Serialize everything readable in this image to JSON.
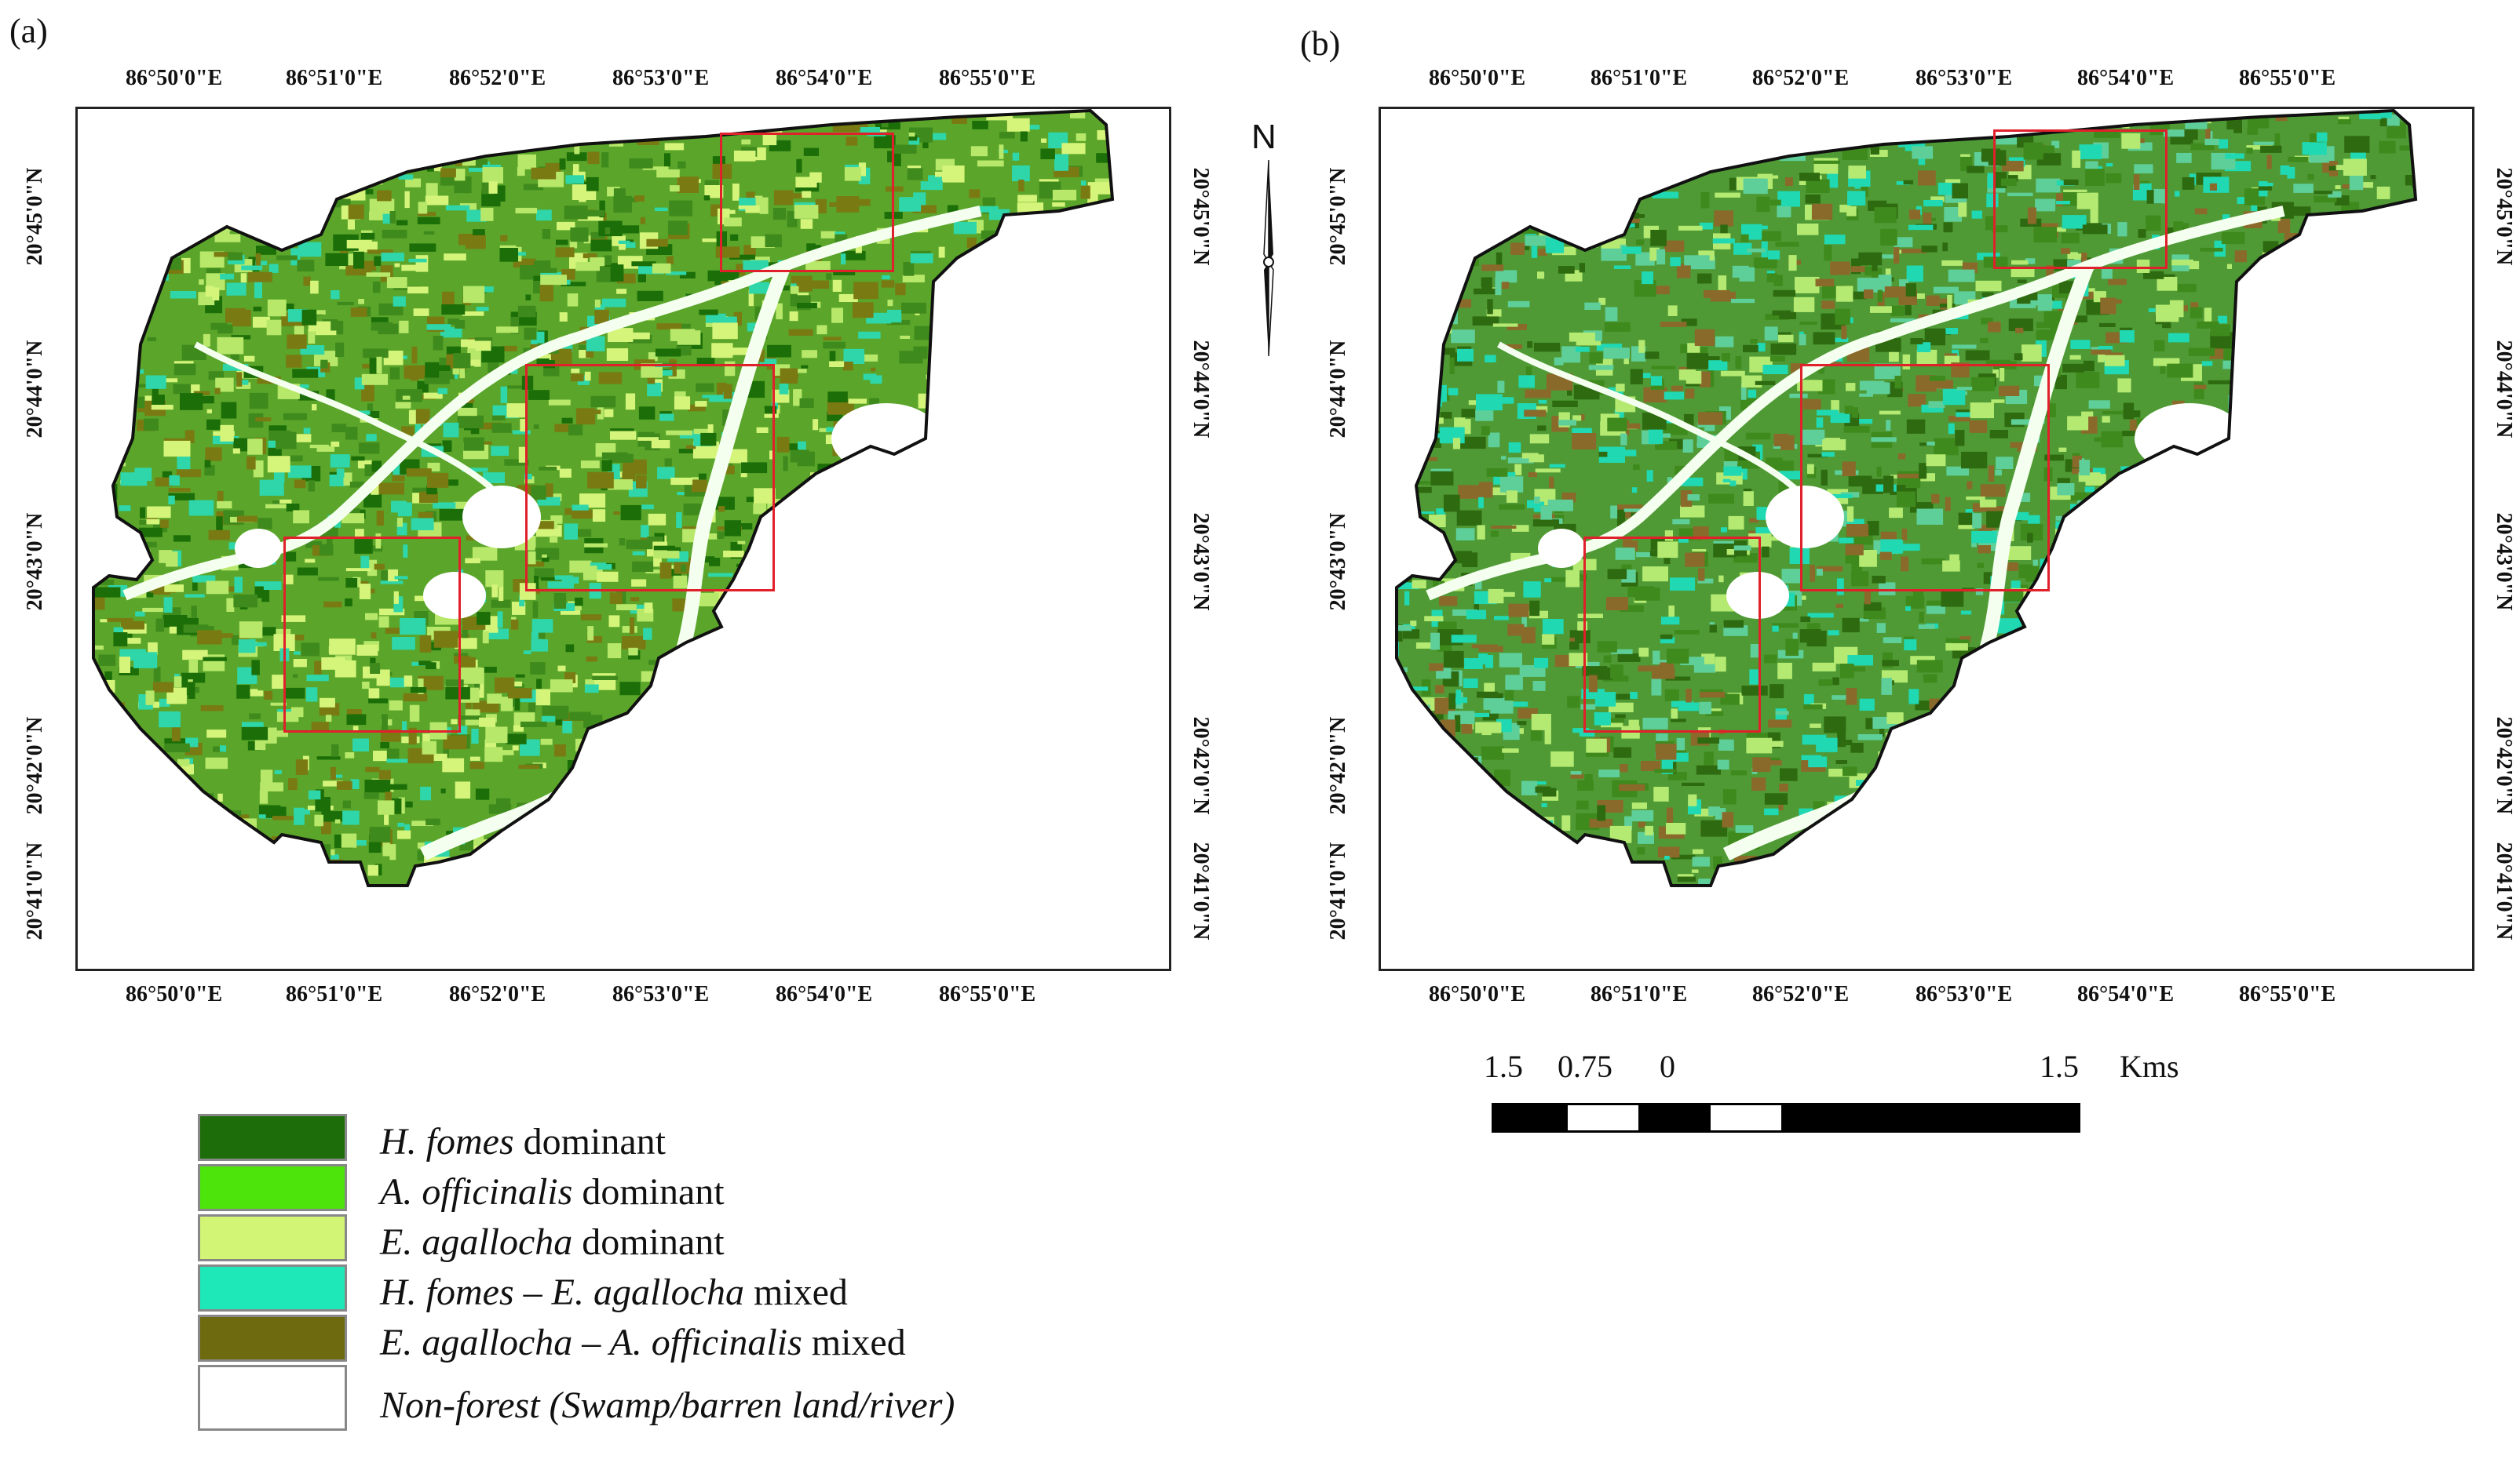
{
  "panels": [
    {
      "label": "(a)",
      "colors": [
        "#1b6e08",
        "#3f8a1c",
        "#b7e86a",
        "#d5f57a",
        "#2fd6a9",
        "#7a7a12"
      ],
      "base": "#5aa52a"
    },
    {
      "label": "(b)",
      "colors": [
        "#2e6a10",
        "#3f8a1c",
        "#5fcf9a",
        "#b5ea72",
        "#20d8b2",
        "#8a6a2a"
      ],
      "base": "#4f9a35"
    }
  ],
  "axes": {
    "lon_ticks": [
      "86°50'0\"E",
      "86°51'0\"E",
      "86°52'0\"E",
      "86°53'0\"E",
      "86°54'0\"E",
      "86°55'0\"E"
    ],
    "lat_ticks": [
      "20°45'0\"N",
      "20°44'0\"N",
      "20°43'0\"N",
      "20°42'0\"N",
      "20°41'0\"N"
    ]
  },
  "north_arrow": {
    "label": "N"
  },
  "scale_bar": {
    "labels": [
      "1.5",
      "0.75",
      "0",
      "1.5"
    ],
    "unit": "Kms"
  },
  "legend": {
    "items": [
      {
        "italic": "H. fomes",
        "rest": " dominant",
        "color": "#1d6e0a"
      },
      {
        "italic": "A. officinalis",
        "rest": " dominant",
        "color": "#4ce40a"
      },
      {
        "italic": "E. agallocha",
        "rest": " dominant",
        "color": "#d3f575"
      },
      {
        "italic": "H. fomes – E. agallocha",
        "rest": " mixed",
        "color": "#1ee8b7"
      },
      {
        "italic": "E. agallocha – A. officinalis",
        "rest": " mixed",
        "color": "#6e6a10"
      },
      {
        "italic": "Non-forest (Swamp/barren land/river)",
        "rest": "",
        "color": "#ffffff"
      }
    ]
  }
}
